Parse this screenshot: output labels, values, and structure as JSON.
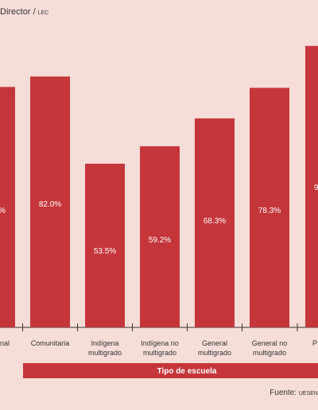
{
  "chart_data": {
    "type": "bar",
    "header_left": "Director",
    "header_left_small": "LEC",
    "xlabel": "Tipo de escuela",
    "source_label": "Fuente:",
    "source_value": "UESEN",
    "categories": [
      "onal",
      "Comunitaria",
      "Indígena multigrado",
      "Indígena no multigrado",
      "General multigrado",
      "General no multigrado",
      "P"
    ],
    "category_lines": [
      [
        "onal"
      ],
      [
        "Comunitaria"
      ],
      [
        "Indígena",
        "multigrado"
      ],
      [
        "Indígena no",
        "multigrado"
      ],
      [
        "General",
        "multigrado"
      ],
      [
        "General no",
        "multigrado"
      ],
      [
        "P"
      ]
    ],
    "values": [
      78.6,
      82.0,
      53.5,
      59.2,
      68.3,
      78.3,
      92.0
    ],
    "labels": [
      "%",
      "82.0%",
      "53.5%",
      "59.2%",
      "68.3%",
      "78.3%",
      "9"
    ],
    "ylim": [
      0,
      100
    ],
    "grid": false,
    "colors": {
      "bar": "#c5363a",
      "label": "#ffffff",
      "axis": "#333333",
      "title_band": "#c5363a"
    }
  }
}
